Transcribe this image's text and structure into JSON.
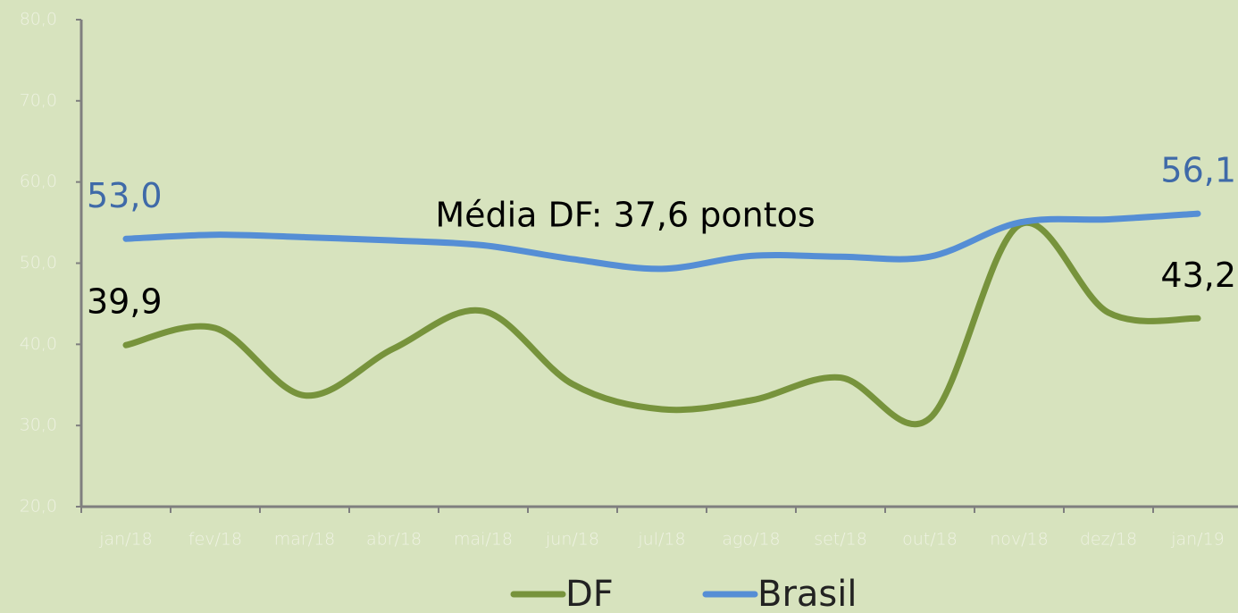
{
  "chart_data": {
    "type": "line",
    "categories": [
      "jan/18",
      "fev/18",
      "mar/18",
      "abr/18",
      "mai/18",
      "jun/18",
      "jul/18",
      "ago/18",
      "set/18",
      "out/18",
      "nov/18",
      "dez/18",
      "jan/19"
    ],
    "series": [
      {
        "name": "DF",
        "color": "#77933c",
        "label_color": "#000000",
        "values": [
          39.9,
          42.0,
          33.7,
          39.5,
          44.1,
          35.1,
          32.0,
          33.1,
          35.9,
          30.9,
          54.7,
          43.9,
          43.2
        ],
        "value_labels": [
          "39,9",
          null,
          null,
          null,
          null,
          null,
          null,
          null,
          null,
          null,
          null,
          null,
          "43,2"
        ]
      },
      {
        "name": "Brasil",
        "color": "#558ed5",
        "label_color": "#3f6aa8",
        "values": [
          53.0,
          53.5,
          53.2,
          52.8,
          52.2,
          50.5,
          49.3,
          50.9,
          50.8,
          50.8,
          55.0,
          55.4,
          56.1
        ],
        "value_labels": [
          "53,0",
          null,
          null,
          null,
          null,
          null,
          null,
          null,
          null,
          null,
          null,
          null,
          "56,1"
        ]
      }
    ],
    "annotation": "Média DF: 37,6 pontos",
    "ylim": [
      20,
      80
    ],
    "yticks": [
      {
        "value": 20,
        "label": "20,0"
      },
      {
        "value": 30,
        "label": "30,0"
      },
      {
        "value": 40,
        "label": "40,0"
      },
      {
        "value": 50,
        "label": "50,0"
      },
      {
        "value": 60,
        "label": "60,0"
      },
      {
        "value": 70,
        "label": "70,0"
      },
      {
        "value": 80,
        "label": "80,0"
      }
    ],
    "grid": false,
    "legend": "bottom"
  }
}
